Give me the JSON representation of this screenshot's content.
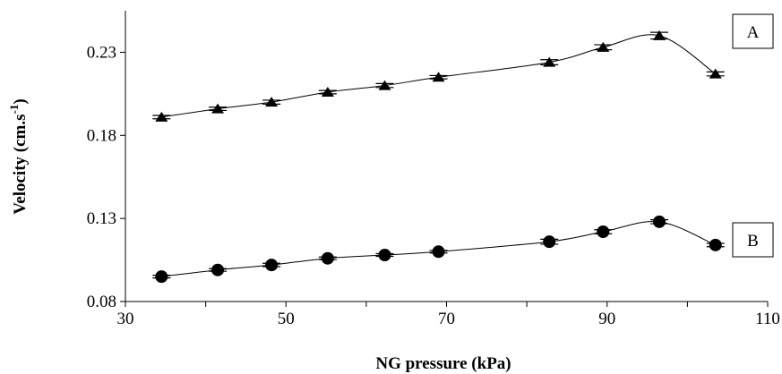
{
  "chart_data": {
    "type": "line",
    "title": "",
    "xlabel": "NG pressure (kPa)",
    "ylabel_main": "Velocity (cm.s",
    "ylabel_sup": "-1",
    "ylabel_tail": ")",
    "xlim": [
      30,
      110
    ],
    "ylim": [
      0.08,
      0.255
    ],
    "x_ticks": [
      30,
      50,
      70,
      90,
      110
    ],
    "x_tick_labels": [
      "30",
      "50",
      "70",
      "90",
      "110"
    ],
    "y_ticks": [
      0.08,
      0.13,
      0.18,
      0.23
    ],
    "y_tick_labels": [
      "0.08",
      "0.13",
      "0.18",
      "0.23"
    ],
    "grid": false,
    "series": [
      {
        "name": "A",
        "marker": "triangle",
        "x": [
          34.5,
          41.5,
          48.2,
          55.2,
          62.3,
          69.0,
          82.8,
          89.5,
          96.5,
          103.5
        ],
        "y": [
          0.191,
          0.196,
          0.2,
          0.206,
          0.21,
          0.215,
          0.224,
          0.233,
          0.24,
          0.217
        ],
        "err": [
          0.001,
          0.001,
          0.0012,
          0.001,
          0.0012,
          0.001,
          0.0015,
          0.0015,
          0.002,
          0.0012
        ]
      },
      {
        "name": "B",
        "marker": "circle",
        "x": [
          34.5,
          41.5,
          48.2,
          55.2,
          62.3,
          69.0,
          82.8,
          89.5,
          96.5,
          103.5
        ],
        "y": [
          0.095,
          0.099,
          0.102,
          0.106,
          0.108,
          0.11,
          0.116,
          0.122,
          0.128,
          0.114
        ],
        "err": [
          0.0008,
          0.0008,
          0.001,
          0.0008,
          0.0008,
          0.0008,
          0.0015,
          0.0012,
          0.0012,
          0.001
        ]
      }
    ],
    "legend_placement": "labels-boxed-at-right"
  },
  "colors": {
    "line": "#000000",
    "marker": "#000000",
    "background": "#ffffff"
  }
}
